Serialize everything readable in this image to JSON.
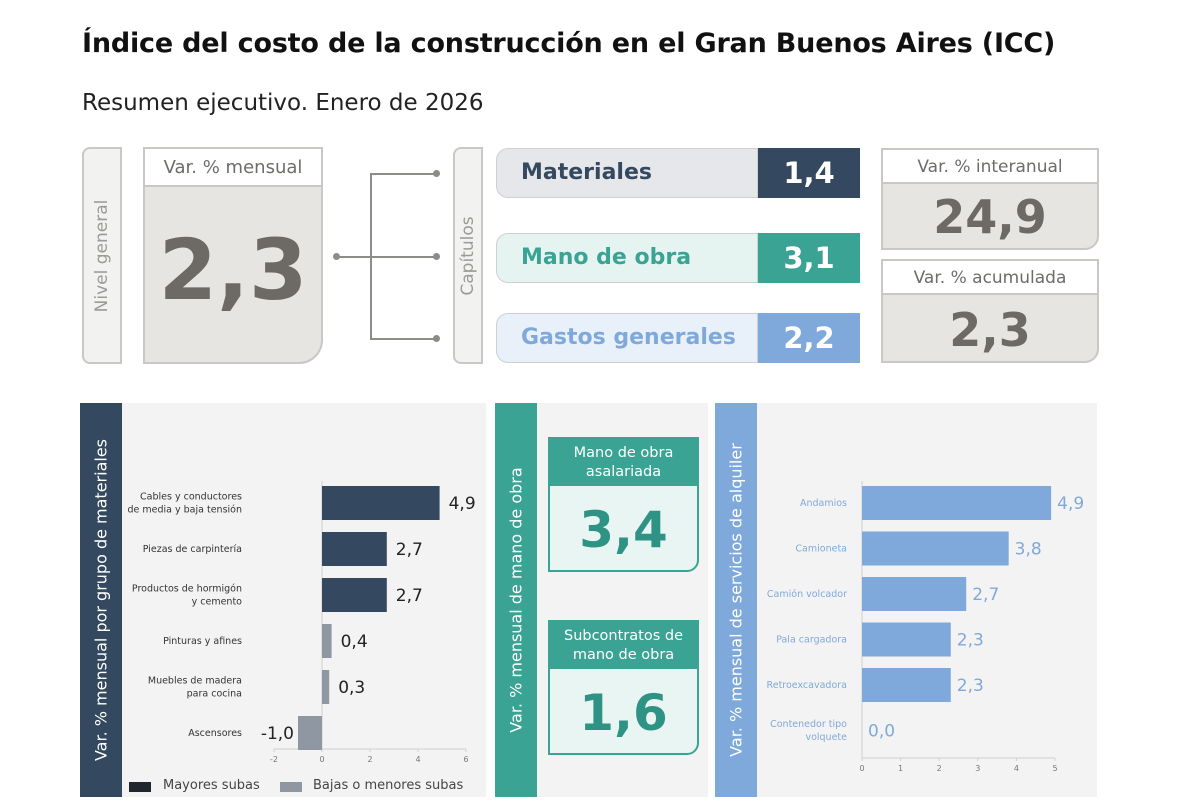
{
  "header": {
    "title": "Índice del costo de la construcción en el Gran Buenos Aires (ICC)",
    "subtitle": "Resumen ejecutivo. Enero de 2026"
  },
  "summary": {
    "nivel_general_label": "Nivel general",
    "mensual_label": "Var. % mensual",
    "mensual_value": "2,3",
    "capitulos_label": "Capítulos",
    "capitulos": [
      {
        "name": "Materiales",
        "value": "1,4"
      },
      {
        "name": "Mano de obra",
        "value": "3,1"
      },
      {
        "name": "Gastos generales",
        "value": "2,2"
      }
    ],
    "interanual_label": "Var. % interanual",
    "interanual_value": "24,9",
    "acumulada_label": "Var. % acumulada",
    "acumulada_value": "2,3"
  },
  "colors": {
    "materiales": "#34495f",
    "mano_de_obra": "#3aa394",
    "gastos": "#7fa9da",
    "gray": "#8e97a2"
  },
  "materiales_panel": {
    "band_label": "Var. % mensual por grupo de materiales",
    "legend": {
      "mayores": "Mayores subas",
      "bajas": "Bajas o menores subas"
    }
  },
  "mano_obra_panel": {
    "band_label": "Var. % mensual de mano de obra",
    "asalariada_label": "Mano de obra asalariada",
    "asalariada_value": "3,4",
    "subcontratos_label": "Subcontratos de mano de obra",
    "subcontratos_value": "1,6"
  },
  "alquiler_panel": {
    "band_label": "Var. % mensual de servicios de alquiler"
  },
  "chart_data": [
    {
      "type": "bar",
      "orientation": "horizontal",
      "categories": [
        [
          "Cables y conductores",
          "de media y baja tensión"
        ],
        [
          "Piezas de carpintería"
        ],
        [
          "Productos de hormigón",
          "y cemento"
        ],
        [
          "Pinturas y afines"
        ],
        [
          "Muebles de madera",
          "para cocina"
        ],
        [
          "Ascensores"
        ]
      ],
      "values": [
        4.9,
        2.7,
        2.7,
        0.4,
        0.3,
        -1.0
      ],
      "labels": [
        "4,9",
        "2,7",
        "2,7",
        "0,4",
        "0,3",
        "-1,0"
      ],
      "groups": [
        "mayores",
        "mayores",
        "mayores",
        "bajas",
        "bajas",
        "bajas"
      ],
      "xlim": [
        -2,
        6
      ],
      "xticks": [
        "-2",
        "0",
        "2",
        "4",
        "6"
      ]
    },
    {
      "type": "bar",
      "orientation": "horizontal",
      "categories": [
        [
          "Andamios"
        ],
        [
          "Camioneta"
        ],
        [
          "Camión volcador"
        ],
        [
          "Pala cargadora"
        ],
        [
          "Retroexcavadora"
        ],
        [
          "Contenedor tipo",
          "volquete"
        ]
      ],
      "values": [
        4.9,
        3.8,
        2.7,
        2.3,
        2.3,
        0.0
      ],
      "labels": [
        "4,9",
        "3,8",
        "2,7",
        "2,3",
        "2,3",
        "0,0"
      ],
      "xlim": [
        0,
        5
      ],
      "xticks": [
        "0",
        "1",
        "2",
        "3",
        "4",
        "5"
      ]
    }
  ]
}
